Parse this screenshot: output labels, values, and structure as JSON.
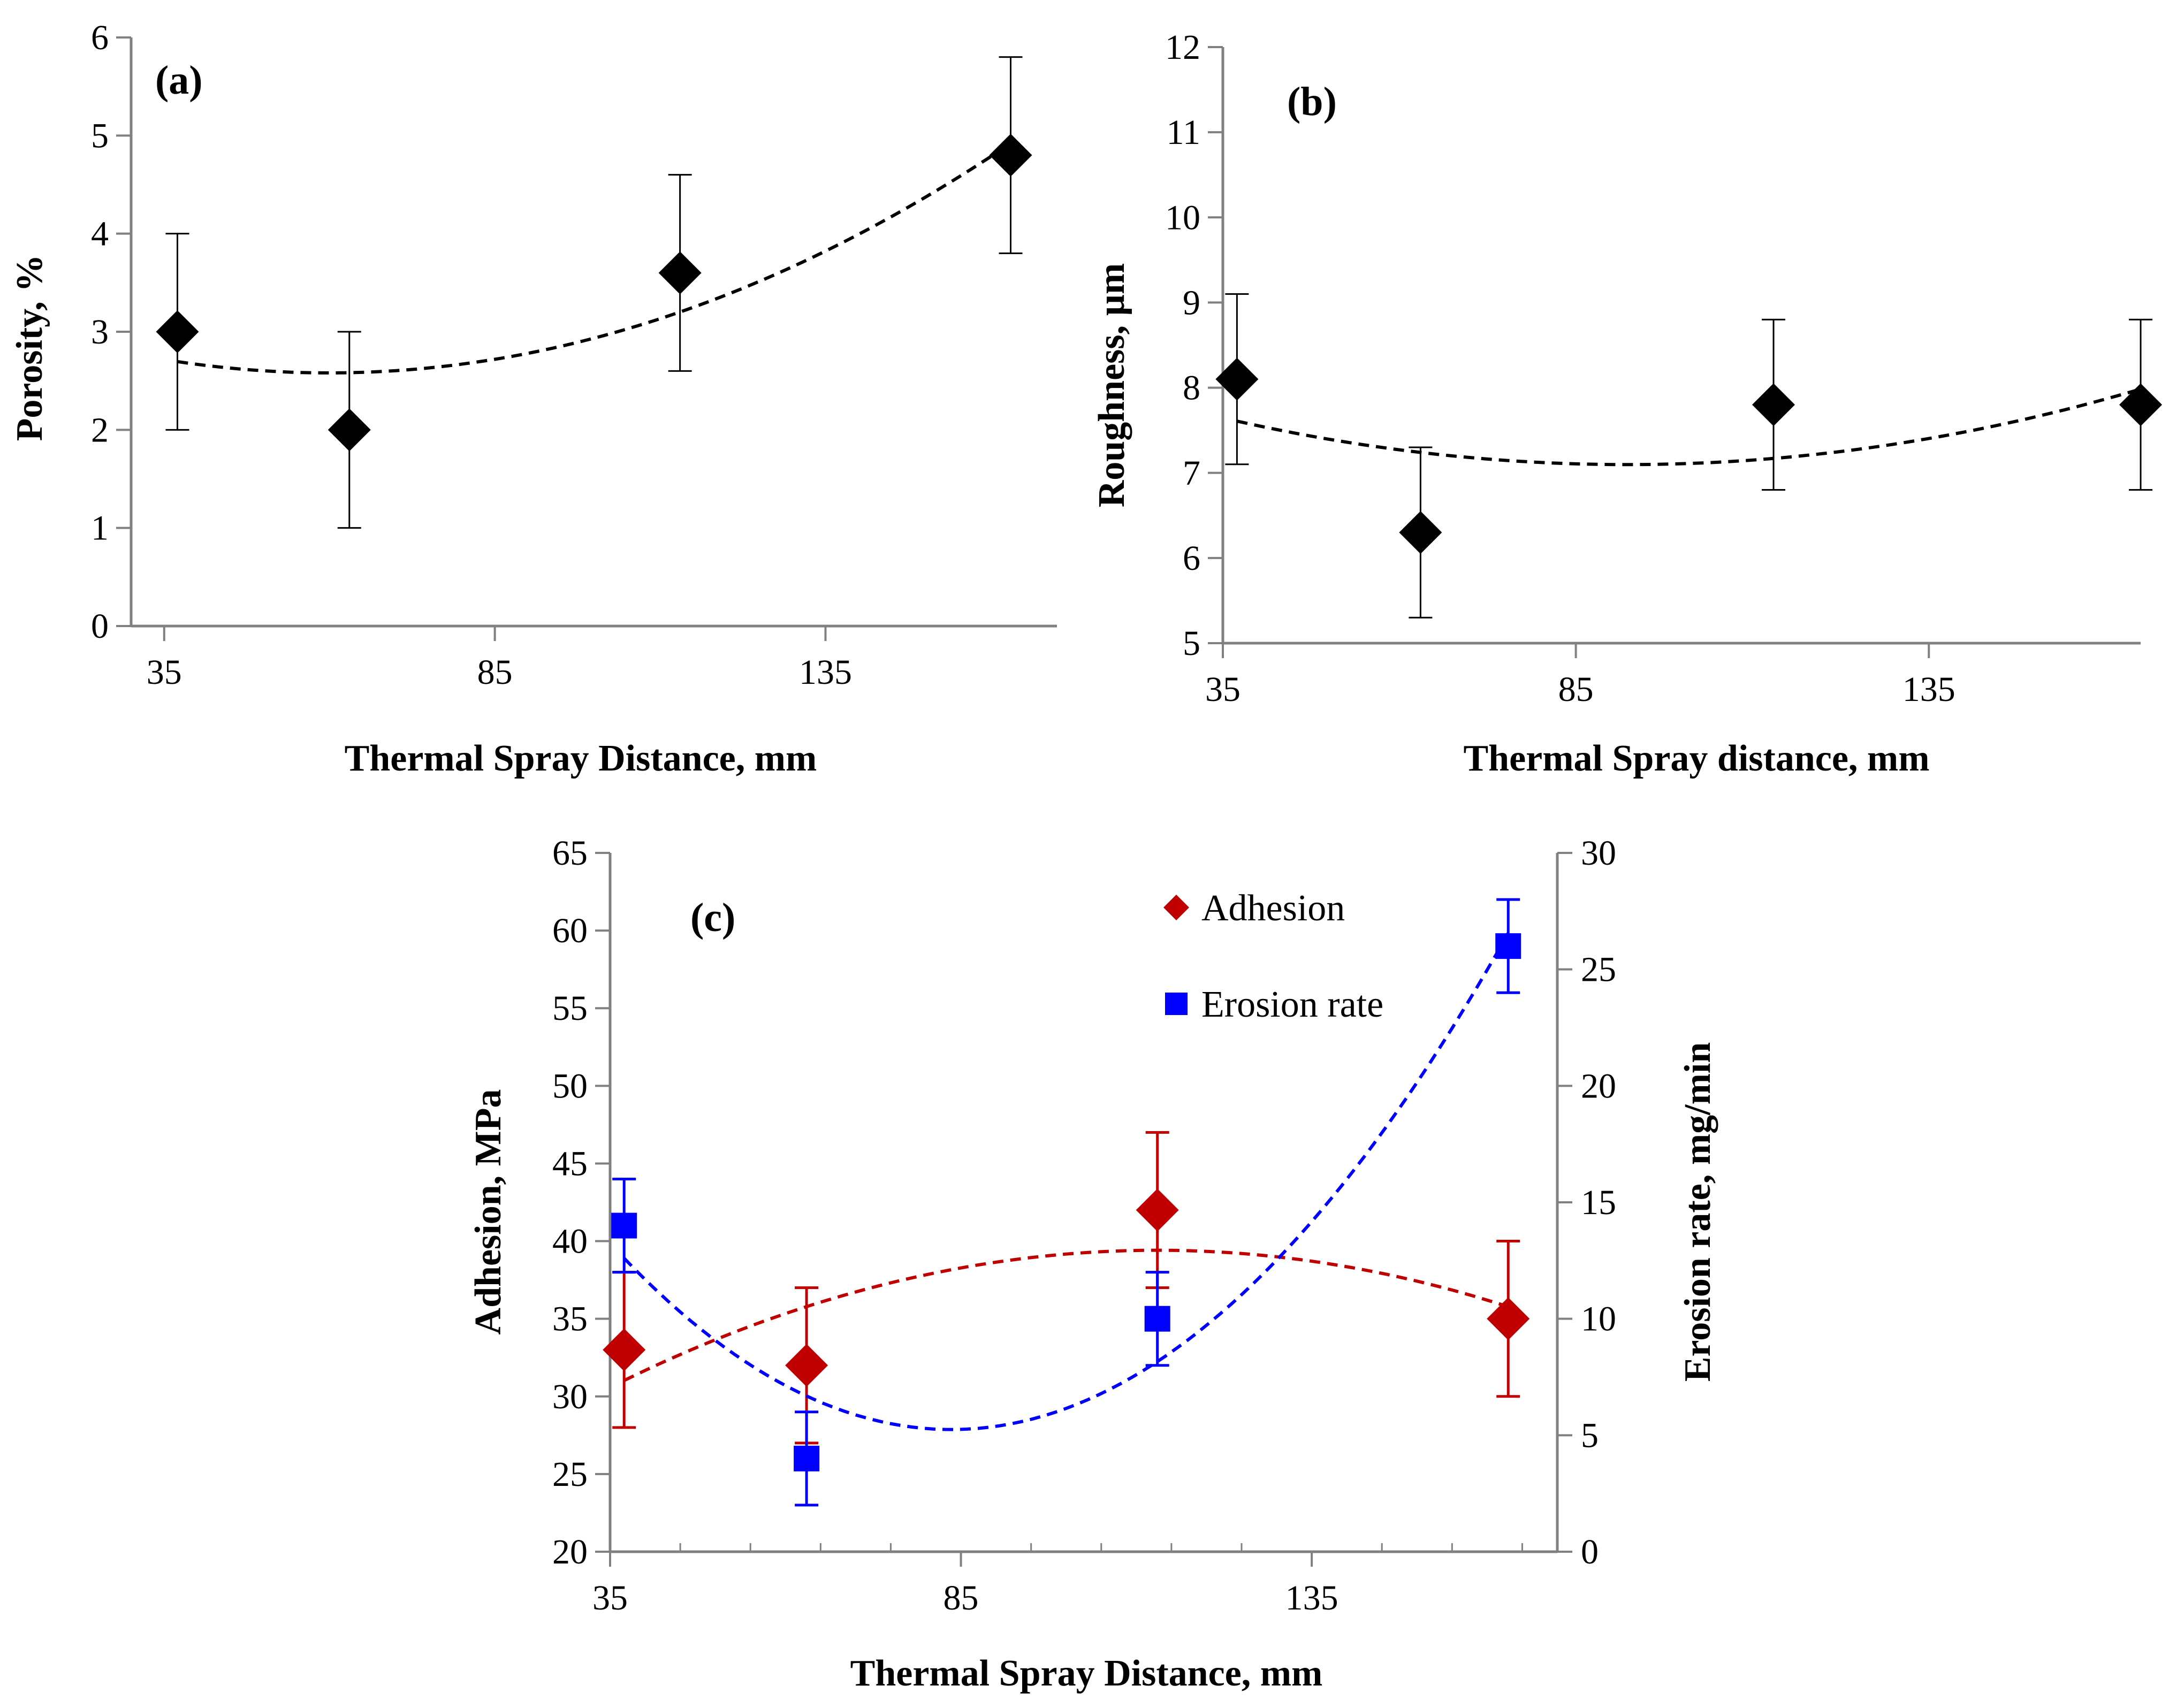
{
  "chart_data": [
    {
      "id": "a",
      "type": "scatter",
      "panel_label": "(a)",
      "xlabel": "Thermal Spray Distance, mm",
      "ylabel": "Porosity, %",
      "xlim": [
        30,
        170
      ],
      "ylim": [
        0,
        6
      ],
      "x_ticks": [
        "35",
        "85",
        "135"
      ],
      "y_ticks": [
        "0",
        "1",
        "2",
        "3",
        "4",
        "5",
        "6"
      ],
      "grid": false,
      "series": [
        {
          "color": "#000000",
          "marker": "diamond",
          "x": [
            37,
            63,
            113,
            163
          ],
          "values": [
            3.0,
            2.0,
            3.6,
            4.8
          ],
          "error": [
            1.0,
            1.0,
            1.0,
            1.0
          ],
          "trendline": {
            "type": "polynomial-2",
            "style": "dashed"
          }
        }
      ]
    },
    {
      "id": "b",
      "type": "scatter",
      "panel_label": "(b)",
      "xlabel": "Thermal Spray distance, mm",
      "ylabel": "Roughness, µm",
      "xlim": [
        35,
        165
      ],
      "ylim": [
        5,
        12
      ],
      "x_ticks": [
        "35",
        "85",
        "135"
      ],
      "y_ticks": [
        "5",
        "6",
        "7",
        "8",
        "9",
        "10",
        "11",
        "12"
      ],
      "grid": false,
      "series": [
        {
          "color": "#000000",
          "marker": "diamond",
          "x": [
            37,
            63,
            113,
            165
          ],
          "values": [
            8.1,
            6.3,
            7.8,
            7.8
          ],
          "error": [
            1.0,
            1.0,
            1.0,
            1.0
          ],
          "trendline": {
            "type": "polynomial-2",
            "style": "dashed"
          }
        }
      ]
    },
    {
      "id": "c",
      "type": "scatter",
      "panel_label": "(c)",
      "xlabel": "Thermal Spray Distance, mm",
      "ylabel": "Adhesion, MPa",
      "y2label": "Erosion rate, mg/min",
      "xlim": [
        35,
        170
      ],
      "ylim": [
        20,
        65
      ],
      "y2lim": [
        0,
        30
      ],
      "x_ticks": [
        "35",
        "85",
        "135"
      ],
      "y_ticks": [
        "20",
        "25",
        "30",
        "35",
        "40",
        "45",
        "50",
        "55",
        "60",
        "65"
      ],
      "y2_ticks": [
        "0",
        "5",
        "10",
        "15",
        "20",
        "25",
        "30"
      ],
      "grid": false,
      "legend_position": "top-right",
      "series": [
        {
          "name": "Adhesion",
          "axis": "left",
          "color": "#c00000",
          "marker": "diamond",
          "x": [
            37,
            63,
            113,
            163
          ],
          "values": [
            33,
            32,
            42,
            35
          ],
          "error": [
            5,
            5,
            5,
            5
          ],
          "trendline": {
            "type": "polynomial-2",
            "style": "dashed"
          }
        },
        {
          "name": "Erosion rate",
          "axis": "right",
          "color": "#0000ff",
          "marker": "square",
          "x": [
            37,
            63,
            113,
            163
          ],
          "values": [
            14,
            4,
            10,
            26
          ],
          "error": [
            2,
            2,
            2,
            2
          ],
          "trendline": {
            "type": "polynomial-2",
            "style": "dashed"
          }
        }
      ]
    }
  ]
}
